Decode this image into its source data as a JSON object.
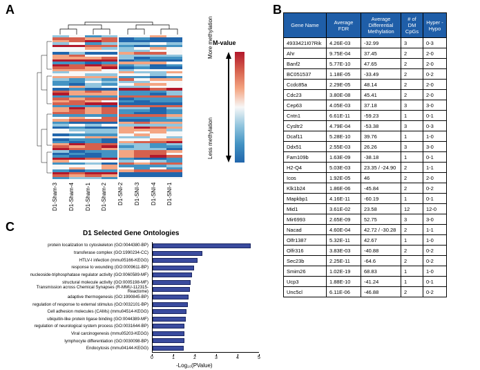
{
  "panels": {
    "A": "A",
    "B": "B",
    "C": "C"
  },
  "heatmap": {
    "type": "heatmap",
    "mvalue_label": "M-value",
    "more_label": "More methylation",
    "less_label": "Less methylation",
    "x_labels": [
      "D1-Sham-3",
      "D1-Sham-4",
      "D1-Sham-1",
      "D1-Sham-2",
      "D1-SNI-2",
      "D1-SNI-3",
      "D1-SNI-4",
      "D1-SNI-1"
    ],
    "n_rows": 60,
    "n_cols": 8,
    "colorscale": [
      "#b2182b",
      "#d6604d",
      "#f4a582",
      "#f7f7f7",
      "#92c5de",
      "#4393c3",
      "#2166ac"
    ],
    "background_color": "#ffffff",
    "seed": 17
  },
  "table": {
    "header_bg": "#1f5ea8",
    "header_fg": "#ffffff",
    "border_color": "#000000",
    "columns": [
      "Gene Name",
      "Average FDR",
      "Average Differential Methylation",
      "# of DM CpGs",
      "Hyper - Hypo"
    ],
    "rows": [
      [
        "4933421I07Rik",
        "4.26E-03",
        "-32.99",
        "3",
        "0-3"
      ],
      [
        "Ahr",
        "9.75E-04",
        "37.45",
        "2",
        "2-0"
      ],
      [
        "Banf2",
        "5.77E-10",
        "47.65",
        "2",
        "2-0"
      ],
      [
        "BC051537",
        "1.18E-05",
        "-33.49",
        "2",
        "0-2"
      ],
      [
        "Ccdc85a",
        "2.29E-05",
        "48.14",
        "2",
        "2-0"
      ],
      [
        "Cdc23",
        "3.80E-08",
        "45.41",
        "2",
        "2-0"
      ],
      [
        "Cep63",
        "4.05E-03",
        "37.18",
        "3",
        "3-0"
      ],
      [
        "Cntn1",
        "6.61E-11",
        "-59.23",
        "1",
        "0-1"
      ],
      [
        "Cysltr2",
        "4.79E-04",
        "-53.38",
        "3",
        "0-3"
      ],
      [
        "Dcaf11",
        "5.28E-10",
        "39.76",
        "1",
        "1-0"
      ],
      [
        "Ddx51",
        "2.55E-03",
        "26.26",
        "3",
        "3-0"
      ],
      [
        "Fam109b",
        "1.63E-09",
        "-38.18",
        "1",
        "0-1"
      ],
      [
        "H2-Q4",
        "5.03E-03",
        "23.35 / -24.90",
        "2",
        "1-1"
      ],
      [
        "Icos",
        "1.92E-05",
        "46",
        "2",
        "2-0"
      ],
      [
        "Klk1b24",
        "1.86E-06",
        "-45.84",
        "2",
        "0-2"
      ],
      [
        "Mapkbp1",
        "4.16E-11",
        "-60.19",
        "1",
        "0-1"
      ],
      [
        "Mid1",
        "3.61E-02",
        "23.58",
        "12",
        "12-0"
      ],
      [
        "Mir6993",
        "2.65E-09",
        "52.75",
        "3",
        "3-0"
      ],
      [
        "Nacad",
        "4.60E-04",
        "42.72 / -30.28",
        "2",
        "1-1"
      ],
      [
        "Olfr1387",
        "5.32E-11",
        "42.67",
        "1",
        "1-0"
      ],
      [
        "Olfr316",
        "3.83E-03",
        "-40.88",
        "2",
        "0-2"
      ],
      [
        "Sec23b",
        "2.25E-11",
        "-64.6",
        "2",
        "0-2"
      ],
      [
        "Smim26",
        "1.02E-19",
        "68.83",
        "1",
        "1-0"
      ],
      [
        "Ucp3",
        "1.88E-10",
        "-41.24",
        "1",
        "0-1"
      ],
      [
        "Unc5cl",
        "6.11E-06",
        "-46.88",
        "2",
        "0-2"
      ]
    ]
  },
  "barchart": {
    "type": "bar-horizontal",
    "title": "D1 Selected Gene Ontologies",
    "xlabel": "-Log₁₀(PValue)",
    "xlim": [
      0,
      5
    ],
    "xtick_step": 1,
    "bar_color": "#3a4b9e",
    "bar_border": "#1a2560",
    "categories": [
      "protein localization to cytoskeleton (GO:0044380-BP)",
      "transferase complex (GO:1990234-CC)",
      "HTLV-I infection (mmu05166-KEGG)",
      "response to wounding (GO:0009611-BP)",
      "nucleoside-triphosphatase regulator activity (GO:0060589-MF)",
      "structural molecule activity (GO:0005198-MF)",
      "Transmission across Chemical Synapses (R-MMU-112315-Reactome)",
      "adaptive thermogenesis (GO:1990845-BP)",
      "regulation of response to external stimulus (GO:0032101-BP)",
      "Cell adhesion molecules (CAMs) (mmu04514-KEGG)",
      "ubiquitin-like protein ligase binding (GO:0044389-MF)",
      "regulation of neurological system process (GO:0031644-BP)",
      "Viral carcinogenesis (mmu05203-KEGG)",
      "lymphocyte differentiation (GO:0030098-BP)",
      "Endocytosis (mmu04144-KEGG)"
    ],
    "values": [
      4.6,
      2.35,
      2.1,
      1.95,
      1.85,
      1.8,
      1.75,
      1.7,
      1.65,
      1.6,
      1.55,
      1.5,
      1.5,
      1.48,
      1.45
    ]
  }
}
